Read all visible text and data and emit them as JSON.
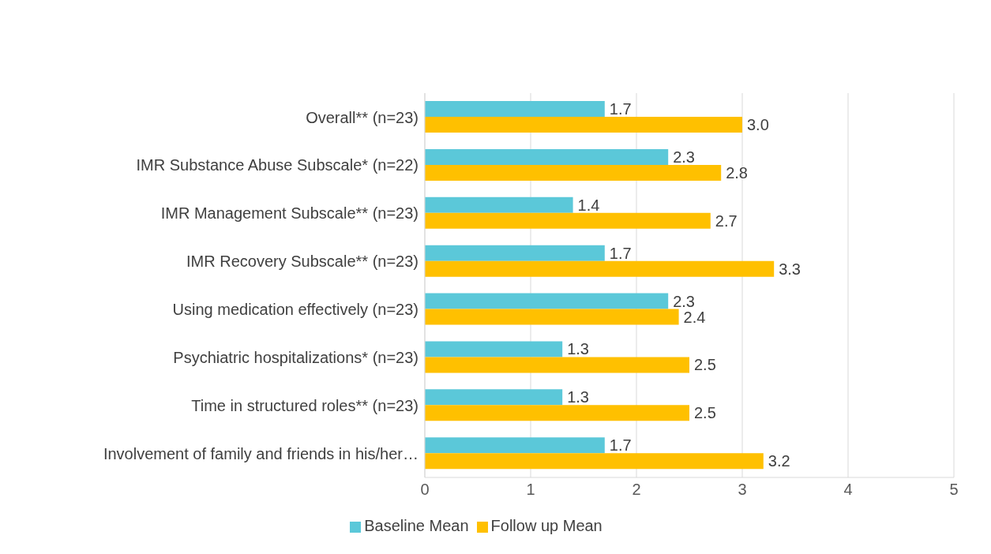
{
  "chart_data": {
    "type": "bar",
    "orientation": "horizontal",
    "categories": [
      "Overall** (n=23)",
      "IMR Substance Abuse Subscale* (n=22)",
      "IMR Management Subscale** (n=23)",
      "IMR Recovery Subscale** (n=23)",
      "Using medication effectively (n=23)",
      "Psychiatric hospitalizations* (n=23)",
      "Time in structured roles** (n=23)",
      "Involvement of family and friends in his/her…"
    ],
    "series": [
      {
        "name": "Baseline Mean",
        "color": "#5bc8d9",
        "values": [
          1.7,
          2.3,
          1.4,
          1.7,
          2.3,
          1.3,
          1.3,
          1.7
        ],
        "value_labels": [
          "1.7",
          "2.3",
          "1.4",
          "1.7",
          "2.3",
          "1.3",
          "1.3",
          "1.7"
        ]
      },
      {
        "name": "Follow up Mean",
        "color": "#ffc000",
        "values": [
          3.0,
          2.8,
          2.7,
          3.3,
          2.4,
          2.5,
          2.5,
          3.2
        ],
        "value_labels": [
          "3.0",
          "2.8",
          "2.7",
          "3.3",
          "2.4",
          "2.5",
          "2.5",
          "3.2"
        ]
      }
    ],
    "xlim": [
      0,
      5
    ],
    "xticks": [
      0,
      1,
      2,
      3,
      4,
      5
    ],
    "grid": "x",
    "legend": "bottom"
  }
}
